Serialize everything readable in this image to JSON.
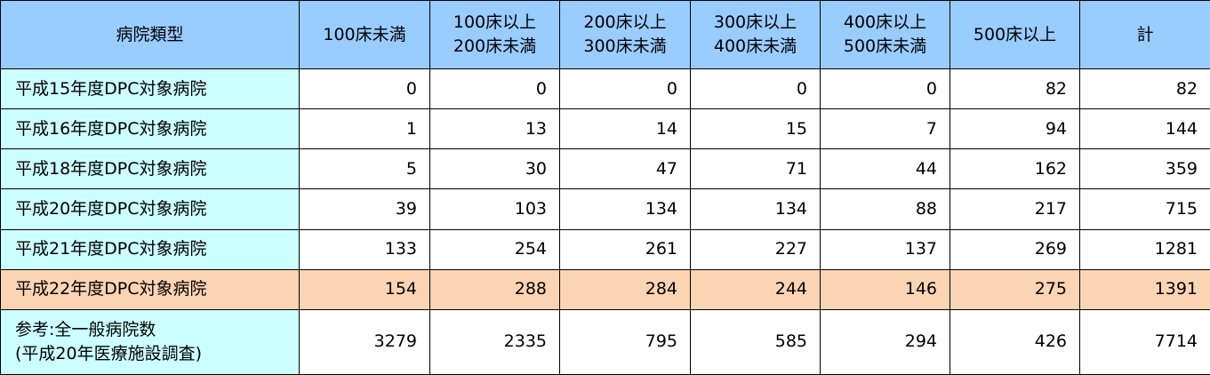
{
  "table": {
    "header": [
      [
        "病院類型"
      ],
      [
        "100床未満"
      ],
      [
        "100床以上",
        "200床未満"
      ],
      [
        "200床以上",
        "300床未満"
      ],
      [
        "300床以上",
        "400床未満"
      ],
      [
        "400床以上",
        "500床未満"
      ],
      [
        "500床以上"
      ],
      [
        "計"
      ]
    ],
    "rows": [
      {
        "label": [
          "平成15年度DPC対象病院"
        ],
        "values": [
          0,
          0,
          0,
          0,
          0,
          82,
          82
        ]
      },
      {
        "label": [
          "平成16年度DPC対象病院"
        ],
        "values": [
          1,
          13,
          14,
          15,
          7,
          94,
          144
        ]
      },
      {
        "label": [
          "平成18年度DPC対象病院"
        ],
        "values": [
          5,
          30,
          47,
          71,
          44,
          162,
          359
        ]
      },
      {
        "label": [
          "平成20年度DPC対象病院"
        ],
        "values": [
          39,
          103,
          134,
          134,
          88,
          217,
          715
        ]
      },
      {
        "label": [
          "平成21年度DPC対象病院"
        ],
        "values": [
          133,
          254,
          261,
          227,
          137,
          269,
          1281
        ]
      },
      {
        "label": [
          "平成22年度DPC対象病院"
        ],
        "values": [
          154,
          288,
          284,
          244,
          146,
          275,
          1391
        ]
      },
      {
        "label": [
          "参考:全一般病院数",
          "(平成20年医療施設調査)"
        ],
        "values": [
          3279,
          2335,
          795,
          585,
          294,
          426,
          7714
        ]
      }
    ]
  }
}
